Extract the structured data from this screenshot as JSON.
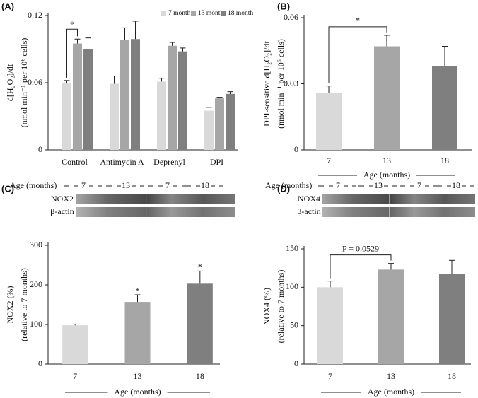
{
  "chart_data": [
    {
      "type": "grouped-bar",
      "panel_label": "(A)",
      "ylabel": [
        "d[H₂O₂]/dt",
        "(nmol min⁻¹ per 10⁶ cells)"
      ],
      "categories": [
        "Control",
        "Antimycin A",
        "Deprenyl",
        "DPI"
      ],
      "series": [
        {
          "name": "7 month",
          "color": "#d9d9d9",
          "values": [
            0.06,
            0.059,
            0.061,
            0.035
          ],
          "errors": [
            0.002,
            0.007,
            0.003,
            0.003
          ]
        },
        {
          "name": "13 month",
          "color": "#a6a6a6",
          "values": [
            0.095,
            0.098,
            0.093,
            0.046
          ],
          "errors": [
            0.004,
            0.011,
            0.003,
            0.001
          ]
        },
        {
          "name": "18 month",
          "color": "#7f7f7f",
          "values": [
            0.09,
            0.099,
            0.088,
            0.05
          ],
          "errors": [
            0.01,
            0.016,
            0.003,
            0.002
          ]
        }
      ],
      "ylim": [
        0,
        0.12
      ],
      "yticks": [
        0,
        0.06,
        0.12
      ],
      "annotations": [
        "*"
      ]
    },
    {
      "type": "bar",
      "panel_label": "(B)",
      "ylabel": [
        "DPI-sensitive d[H₂O₂]/dt",
        "(nmol min⁻¹ per 10⁶ cells)"
      ],
      "xlabel": "Age (months)",
      "categories": [
        "7",
        "13",
        "18"
      ],
      "values": [
        0.026,
        0.047,
        0.038
      ],
      "errors": [
        0.003,
        0.005,
        0.009
      ],
      "colors": [
        "#d9d9d9",
        "#a6a6a6",
        "#7f7f7f"
      ],
      "ylim": [
        0,
        0.06
      ],
      "yticks": [
        0,
        0.03,
        0.06
      ],
      "annotations": [
        "*"
      ]
    },
    {
      "type": "bar",
      "panel_label": "(C)",
      "blot": {
        "header": "Age (months)",
        "groups": [
          "7",
          "13",
          "7",
          "18"
        ],
        "rows": [
          "NOX2",
          "β-actin"
        ]
      },
      "ylabel": [
        "NOX2 (%)",
        "(relative to 7 months)"
      ],
      "xlabel": "Age (months)",
      "categories": [
        "7",
        "13",
        "18"
      ],
      "values": [
        98,
        157,
        203
      ],
      "errors": [
        3,
        18,
        32
      ],
      "colors": [
        "#d9d9d9",
        "#a6a6a6",
        "#7f7f7f"
      ],
      "ylim": [
        0,
        300
      ],
      "yticks": [
        0,
        100,
        200,
        300
      ],
      "annotations": [
        "*",
        "*"
      ]
    },
    {
      "type": "bar",
      "panel_label": "(D)",
      "blot": {
        "header": "Age (months)",
        "groups": [
          "7",
          "13",
          "7",
          "18"
        ],
        "rows": [
          "NOX4",
          "β-actin"
        ]
      },
      "ylabel": [
        "NOX4 (%)",
        "(relative to 7 months)"
      ],
      "xlabel": "Age (months)",
      "categories": [
        "7",
        "13",
        "18"
      ],
      "values": [
        100,
        123,
        117
      ],
      "errors": [
        8,
        8,
        18
      ],
      "colors": [
        "#d9d9d9",
        "#a6a6a6",
        "#7f7f7f"
      ],
      "ylim": [
        0,
        150
      ],
      "yticks": [
        0,
        50,
        100,
        150
      ],
      "annotations": [
        "P = 0.0529"
      ]
    }
  ]
}
